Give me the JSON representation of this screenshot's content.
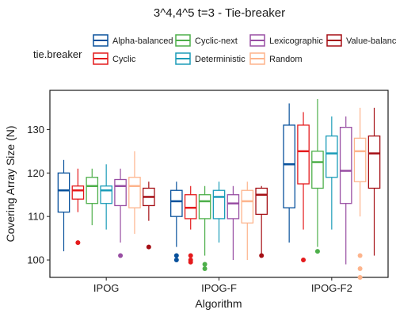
{
  "chart_data": {
    "type": "boxplot",
    "title": "3^4,4^5 t=3 - Tie-breaker",
    "xlabel": "Algorithm",
    "ylabel": "Covering Array Size (N)",
    "ylim": [
      96,
      139
    ],
    "yticks": [
      100,
      110,
      120,
      130
    ],
    "categories": [
      "IPOG",
      "IPOG-F",
      "IPOG-F2"
    ],
    "legend": {
      "title": "tie.breaker",
      "position": "top",
      "rows": 2
    },
    "grid": false,
    "series": [
      {
        "name": "Alpha-balanced",
        "color": "#08519c",
        "boxes": [
          {
            "min": 102,
            "q1": 111,
            "median": 116,
            "q3": 120,
            "max": 123,
            "outliers": []
          },
          {
            "min": 103,
            "q1": 110,
            "median": 113.5,
            "q3": 116,
            "max": 118,
            "outliers": [
              101,
              100
            ]
          },
          {
            "min": 104,
            "q1": 112,
            "median": 122,
            "q3": 131,
            "max": 136,
            "outliers": []
          }
        ]
      },
      {
        "name": "Cyclic",
        "color": "#e41a1c",
        "boxes": [
          {
            "min": 111,
            "q1": 114,
            "median": 116,
            "q3": 117,
            "max": 121,
            "outliers": [
              104
            ]
          },
          {
            "min": 107,
            "q1": 109.5,
            "median": 112,
            "q3": 115,
            "max": 117,
            "outliers": [
              101,
              100,
              99.5
            ]
          },
          {
            "min": 107,
            "q1": 117.5,
            "median": 125,
            "q3": 131,
            "max": 134,
            "outliers": [
              100
            ]
          }
        ]
      },
      {
        "name": "Cyclic-next",
        "color": "#4daf4a",
        "boxes": [
          {
            "min": 108,
            "q1": 113,
            "median": 117,
            "q3": 119,
            "max": 121,
            "outliers": []
          },
          {
            "min": 101,
            "q1": 109.5,
            "median": 113.5,
            "q3": 115,
            "max": 117,
            "outliers": [
              99,
              98
            ]
          },
          {
            "min": 103,
            "q1": 116.5,
            "median": 122.5,
            "q3": 125,
            "max": 137,
            "outliers": [
              102
            ]
          }
        ]
      },
      {
        "name": "Deterministic",
        "color": "#1b9cb8",
        "boxes": [
          {
            "min": 107,
            "q1": 113,
            "median": 116,
            "q3": 117,
            "max": 122,
            "outliers": []
          },
          {
            "min": 104,
            "q1": 109.5,
            "median": 114.5,
            "q3": 116,
            "max": 118,
            "outliers": []
          },
          {
            "min": 107,
            "q1": 119,
            "median": 124.5,
            "q3": 128.5,
            "max": 133,
            "outliers": []
          }
        ]
      },
      {
        "name": "Lexicographic",
        "color": "#984ea3",
        "boxes": [
          {
            "min": 104,
            "q1": 112.5,
            "median": 117,
            "q3": 118.5,
            "max": 121,
            "outliers": [
              101
            ]
          },
          {
            "min": 100,
            "q1": 109.5,
            "median": 113,
            "q3": 115,
            "max": 117,
            "outliers": []
          },
          {
            "min": 99,
            "q1": 113,
            "median": 120.5,
            "q3": 130.5,
            "max": 133,
            "outliers": []
          }
        ]
      },
      {
        "name": "Random",
        "color": "#fdb48c",
        "boxes": [
          {
            "min": 106,
            "q1": 112,
            "median": 117,
            "q3": 119,
            "max": 125,
            "outliers": []
          },
          {
            "min": 100,
            "q1": 108.5,
            "median": 113.5,
            "q3": 116,
            "max": 118,
            "outliers": []
          },
          {
            "min": 110,
            "q1": 118,
            "median": 125,
            "q3": 128,
            "max": 135,
            "outliers": [
              101,
              98,
              96
            ]
          }
        ]
      },
      {
        "name": "Value-balanced",
        "color": "#a50f15",
        "boxes": [
          {
            "min": 109,
            "q1": 112.5,
            "median": 114.5,
            "q3": 116.5,
            "max": 118,
            "outliers": [
              103
            ]
          },
          {
            "min": 101,
            "q1": 110.5,
            "median": 115,
            "q3": 116.5,
            "max": 117,
            "outliers": [
              101
            ]
          },
          {
            "min": 101,
            "q1": 116.5,
            "median": 124.5,
            "q3": 128.5,
            "max": 135,
            "outliers": []
          }
        ]
      }
    ]
  }
}
